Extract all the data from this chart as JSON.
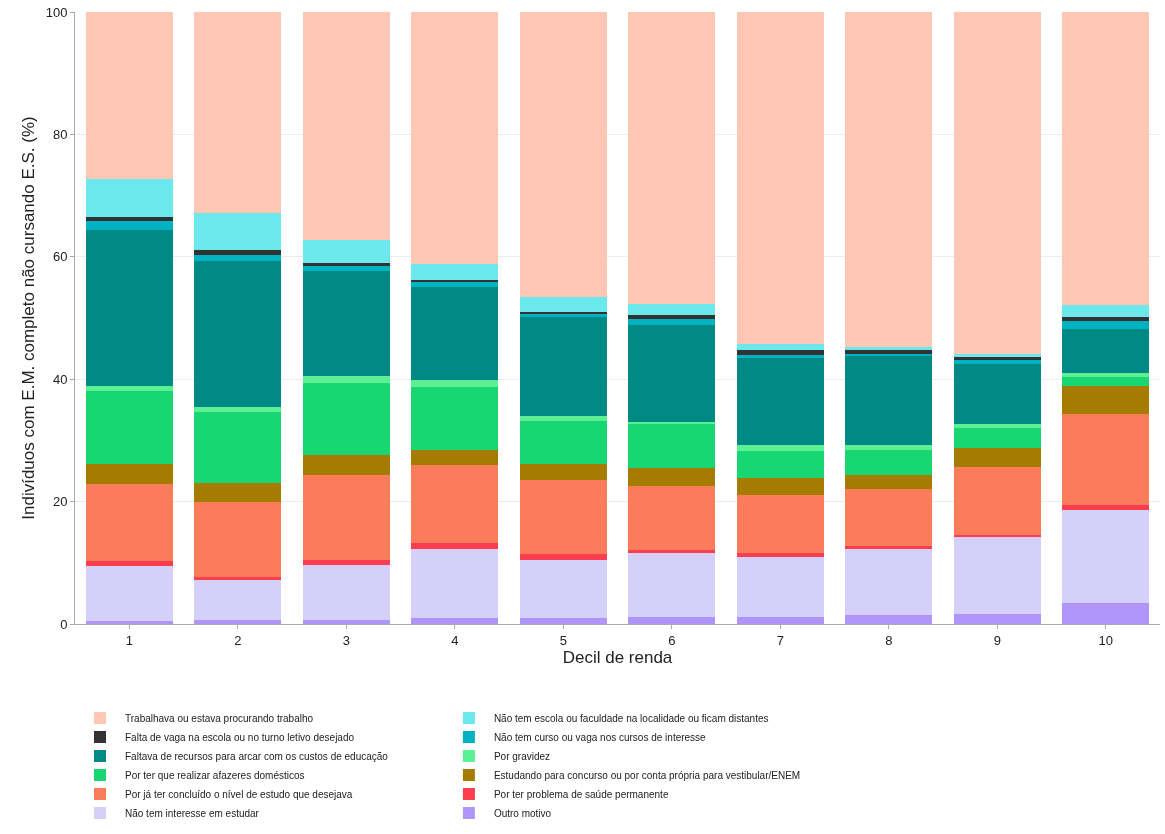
{
  "chart_data": {
    "type": "bar",
    "stacked": true,
    "xlabel": "Decil de renda",
    "ylabel": "Indivíduos com E.M. completo não cursando E.S. (%)",
    "categories": [
      "1",
      "2",
      "3",
      "4",
      "5",
      "6",
      "7",
      "8",
      "9",
      "10"
    ],
    "ylim": [
      0,
      100
    ],
    "yticks": [
      0,
      20,
      40,
      60,
      80,
      100
    ],
    "grid": "y",
    "legend": "bottom",
    "series": [
      {
        "name": "Outro motivo",
        "color": "#b095f8",
        "values": [
          0.5,
          0.7,
          0.7,
          1.0,
          0.9,
          1.1,
          1.2,
          1.4,
          1.7,
          3.4
        ]
      },
      {
        "name": "Não tem interesse em estudar",
        "color": "#d4d0fa",
        "values": [
          8.9,
          6.5,
          9.0,
          11.2,
          9.6,
          10.5,
          9.8,
          10.8,
          12.6,
          15.3
        ]
      },
      {
        "name": "Por ter problema de saúde permanente",
        "color": "#fb3d50",
        "values": [
          0.9,
          0.5,
          0.7,
          1.1,
          0.9,
          0.5,
          0.6,
          0.5,
          0.3,
          0.7
        ]
      },
      {
        "name": "Por já ter concluído o nível de estudo que desejava",
        "color": "#fa7c5b",
        "values": [
          12.5,
          12.2,
          13.9,
          12.6,
          12.1,
          10.5,
          9.5,
          9.3,
          11.1,
          14.9
        ]
      },
      {
        "name": "Estudando para concurso ou por conta própria para vestibular/ENEM",
        "color": "#a67c00",
        "values": [
          3.3,
          3.1,
          3.3,
          2.5,
          2.6,
          2.9,
          2.7,
          2.4,
          3.0,
          4.6
        ]
      },
      {
        "name": "Por ter que realizar afazeres domésticos",
        "color": "#18d672",
        "values": [
          12.0,
          11.7,
          11.8,
          10.4,
          7.1,
          7.3,
          4.4,
          4.1,
          3.3,
          1.4
        ]
      },
      {
        "name": "Por gravidez",
        "color": "#5def93",
        "values": [
          0.8,
          0.8,
          1.2,
          1.1,
          0.8,
          0.2,
          1.0,
          0.8,
          0.6,
          0.7
        ]
      },
      {
        "name": "Faltava de recursos para arcar com os custos de educação",
        "color": "#008985",
        "values": [
          25.5,
          23.8,
          17.1,
          15.2,
          16.1,
          15.9,
          14.3,
          14.6,
          9.9,
          7.2
        ]
      },
      {
        "name": "Não tem curso ou vaga nos cursos de interesse",
        "color": "#00b2c2",
        "values": [
          1.5,
          1.0,
          0.8,
          0.8,
          0.6,
          0.9,
          0.5,
          0.3,
          0.7,
          1.3
        ]
      },
      {
        "name": "Falta de vaga na escola ou no turno letivo desejado",
        "color": "#333333",
        "values": [
          0.6,
          0.8,
          0.5,
          0.3,
          0.3,
          0.7,
          0.7,
          0.5,
          0.5,
          0.7
        ]
      },
      {
        "name": "Não tem escola ou faculdade na localidade ou ficam distantes",
        "color": "#6ae8ec",
        "values": [
          6.2,
          6.0,
          3.7,
          2.7,
          2.4,
          1.8,
          1.0,
          0.5,
          0.5,
          1.9
        ]
      },
      {
        "name": "Trabalhava ou estava procurando trabalho",
        "color": "#fec6b4",
        "values": [
          27.3,
          32.9,
          37.3,
          41.1,
          46.6,
          47.7,
          54.3,
          54.8,
          55.8,
          47.9
        ]
      }
    ]
  }
}
